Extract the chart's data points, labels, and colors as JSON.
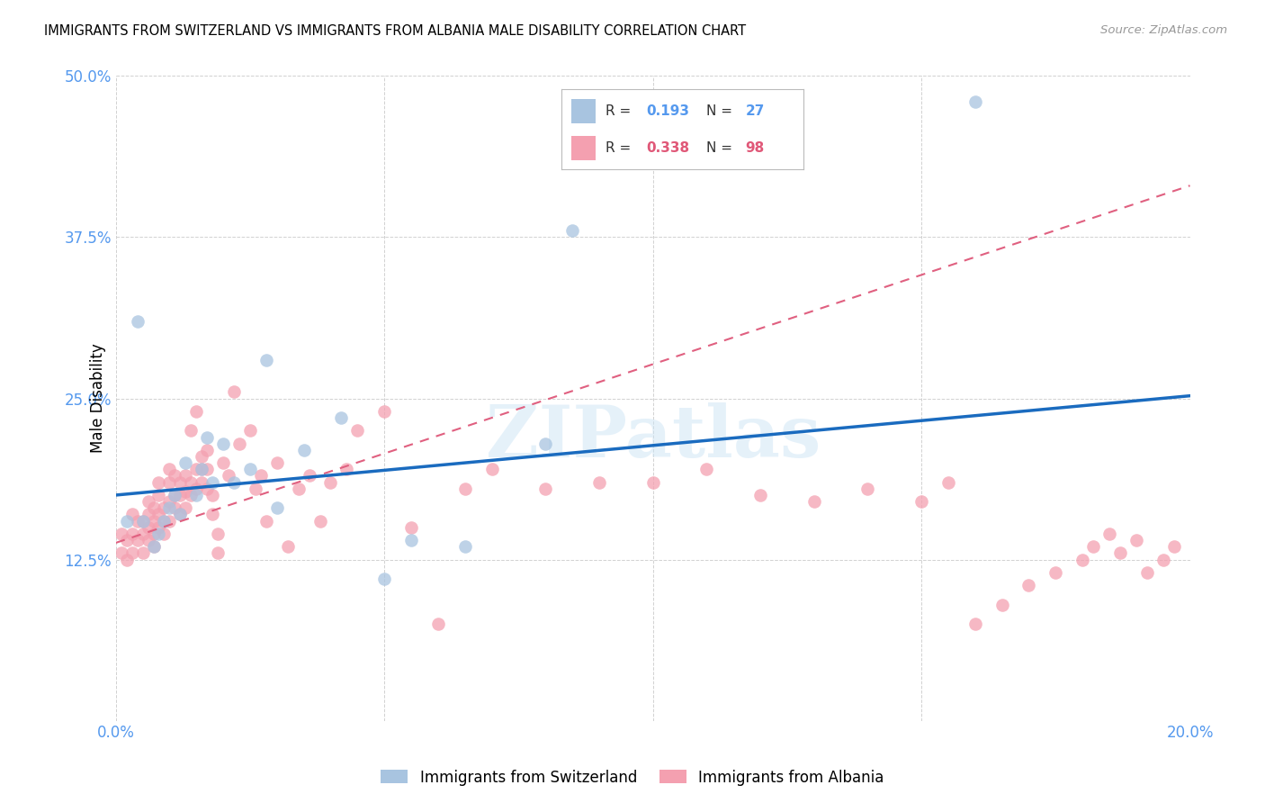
{
  "title": "IMMIGRANTS FROM SWITZERLAND VS IMMIGRANTS FROM ALBANIA MALE DISABILITY CORRELATION CHART",
  "source": "Source: ZipAtlas.com",
  "ylabel": "Male Disability",
  "xlim": [
    0.0,
    0.2
  ],
  "ylim": [
    0.0,
    0.5
  ],
  "xticks": [
    0.0,
    0.05,
    0.1,
    0.15,
    0.2
  ],
  "yticks": [
    0.0,
    0.125,
    0.25,
    0.375,
    0.5
  ],
  "xtick_labels": [
    "0.0%",
    "",
    "",
    "",
    "20.0%"
  ],
  "ytick_labels": [
    "",
    "12.5%",
    "25.0%",
    "37.5%",
    "50.0%"
  ],
  "switzerland_color": "#a8c4e0",
  "albania_color": "#f4a0b0",
  "switzerland_line_color": "#1a6bbf",
  "albania_line_color": "#e06080",
  "R_switzerland": 0.193,
  "N_switzerland": 27,
  "R_albania": 0.338,
  "N_albania": 98,
  "watermark": "ZIPatlas",
  "legend_label_switzerland": "Immigrants from Switzerland",
  "legend_label_albania": "Immigrants from Albania",
  "swiss_line_x0": 0.0,
  "swiss_line_y0": 0.175,
  "swiss_line_x1": 0.2,
  "swiss_line_y1": 0.252,
  "alba_line_x0": 0.0,
  "alba_line_y0": 0.138,
  "alba_line_x1": 0.2,
  "alba_line_y1": 0.415,
  "switzerland_x": [
    0.002,
    0.004,
    0.005,
    0.007,
    0.008,
    0.009,
    0.01,
    0.011,
    0.012,
    0.013,
    0.015,
    0.016,
    0.017,
    0.018,
    0.02,
    0.022,
    0.025,
    0.028,
    0.03,
    0.035,
    0.042,
    0.05,
    0.055,
    0.065,
    0.08,
    0.085,
    0.16
  ],
  "switzerland_y": [
    0.155,
    0.31,
    0.155,
    0.135,
    0.145,
    0.155,
    0.165,
    0.175,
    0.16,
    0.2,
    0.175,
    0.195,
    0.22,
    0.185,
    0.215,
    0.185,
    0.195,
    0.28,
    0.165,
    0.21,
    0.235,
    0.11,
    0.14,
    0.135,
    0.215,
    0.38,
    0.48
  ],
  "albania_x": [
    0.001,
    0.001,
    0.002,
    0.002,
    0.003,
    0.003,
    0.003,
    0.004,
    0.004,
    0.005,
    0.005,
    0.005,
    0.006,
    0.006,
    0.006,
    0.006,
    0.007,
    0.007,
    0.007,
    0.007,
    0.008,
    0.008,
    0.008,
    0.008,
    0.009,
    0.009,
    0.009,
    0.01,
    0.01,
    0.01,
    0.01,
    0.011,
    0.011,
    0.011,
    0.012,
    0.012,
    0.012,
    0.013,
    0.013,
    0.013,
    0.014,
    0.014,
    0.014,
    0.015,
    0.015,
    0.015,
    0.016,
    0.016,
    0.016,
    0.017,
    0.017,
    0.017,
    0.018,
    0.018,
    0.019,
    0.019,
    0.02,
    0.021,
    0.022,
    0.023,
    0.025,
    0.026,
    0.027,
    0.028,
    0.03,
    0.032,
    0.034,
    0.036,
    0.038,
    0.04,
    0.043,
    0.045,
    0.05,
    0.055,
    0.06,
    0.065,
    0.07,
    0.08,
    0.09,
    0.1,
    0.11,
    0.12,
    0.13,
    0.14,
    0.15,
    0.155,
    0.16,
    0.165,
    0.17,
    0.175,
    0.18,
    0.182,
    0.185,
    0.187,
    0.19,
    0.192,
    0.195,
    0.197
  ],
  "albania_y": [
    0.13,
    0.145,
    0.125,
    0.14,
    0.13,
    0.145,
    0.16,
    0.14,
    0.155,
    0.13,
    0.145,
    0.155,
    0.14,
    0.15,
    0.16,
    0.17,
    0.135,
    0.145,
    0.155,
    0.165,
    0.15,
    0.16,
    0.175,
    0.185,
    0.145,
    0.155,
    0.165,
    0.155,
    0.17,
    0.185,
    0.195,
    0.165,
    0.175,
    0.19,
    0.16,
    0.175,
    0.185,
    0.165,
    0.178,
    0.19,
    0.175,
    0.185,
    0.225,
    0.18,
    0.195,
    0.24,
    0.185,
    0.195,
    0.205,
    0.18,
    0.195,
    0.21,
    0.16,
    0.175,
    0.13,
    0.145,
    0.2,
    0.19,
    0.255,
    0.215,
    0.225,
    0.18,
    0.19,
    0.155,
    0.2,
    0.135,
    0.18,
    0.19,
    0.155,
    0.185,
    0.195,
    0.225,
    0.24,
    0.15,
    0.075,
    0.18,
    0.195,
    0.18,
    0.185,
    0.185,
    0.195,
    0.175,
    0.17,
    0.18,
    0.17,
    0.185,
    0.075,
    0.09,
    0.105,
    0.115,
    0.125,
    0.135,
    0.145,
    0.13,
    0.14,
    0.115,
    0.125,
    0.135
  ]
}
